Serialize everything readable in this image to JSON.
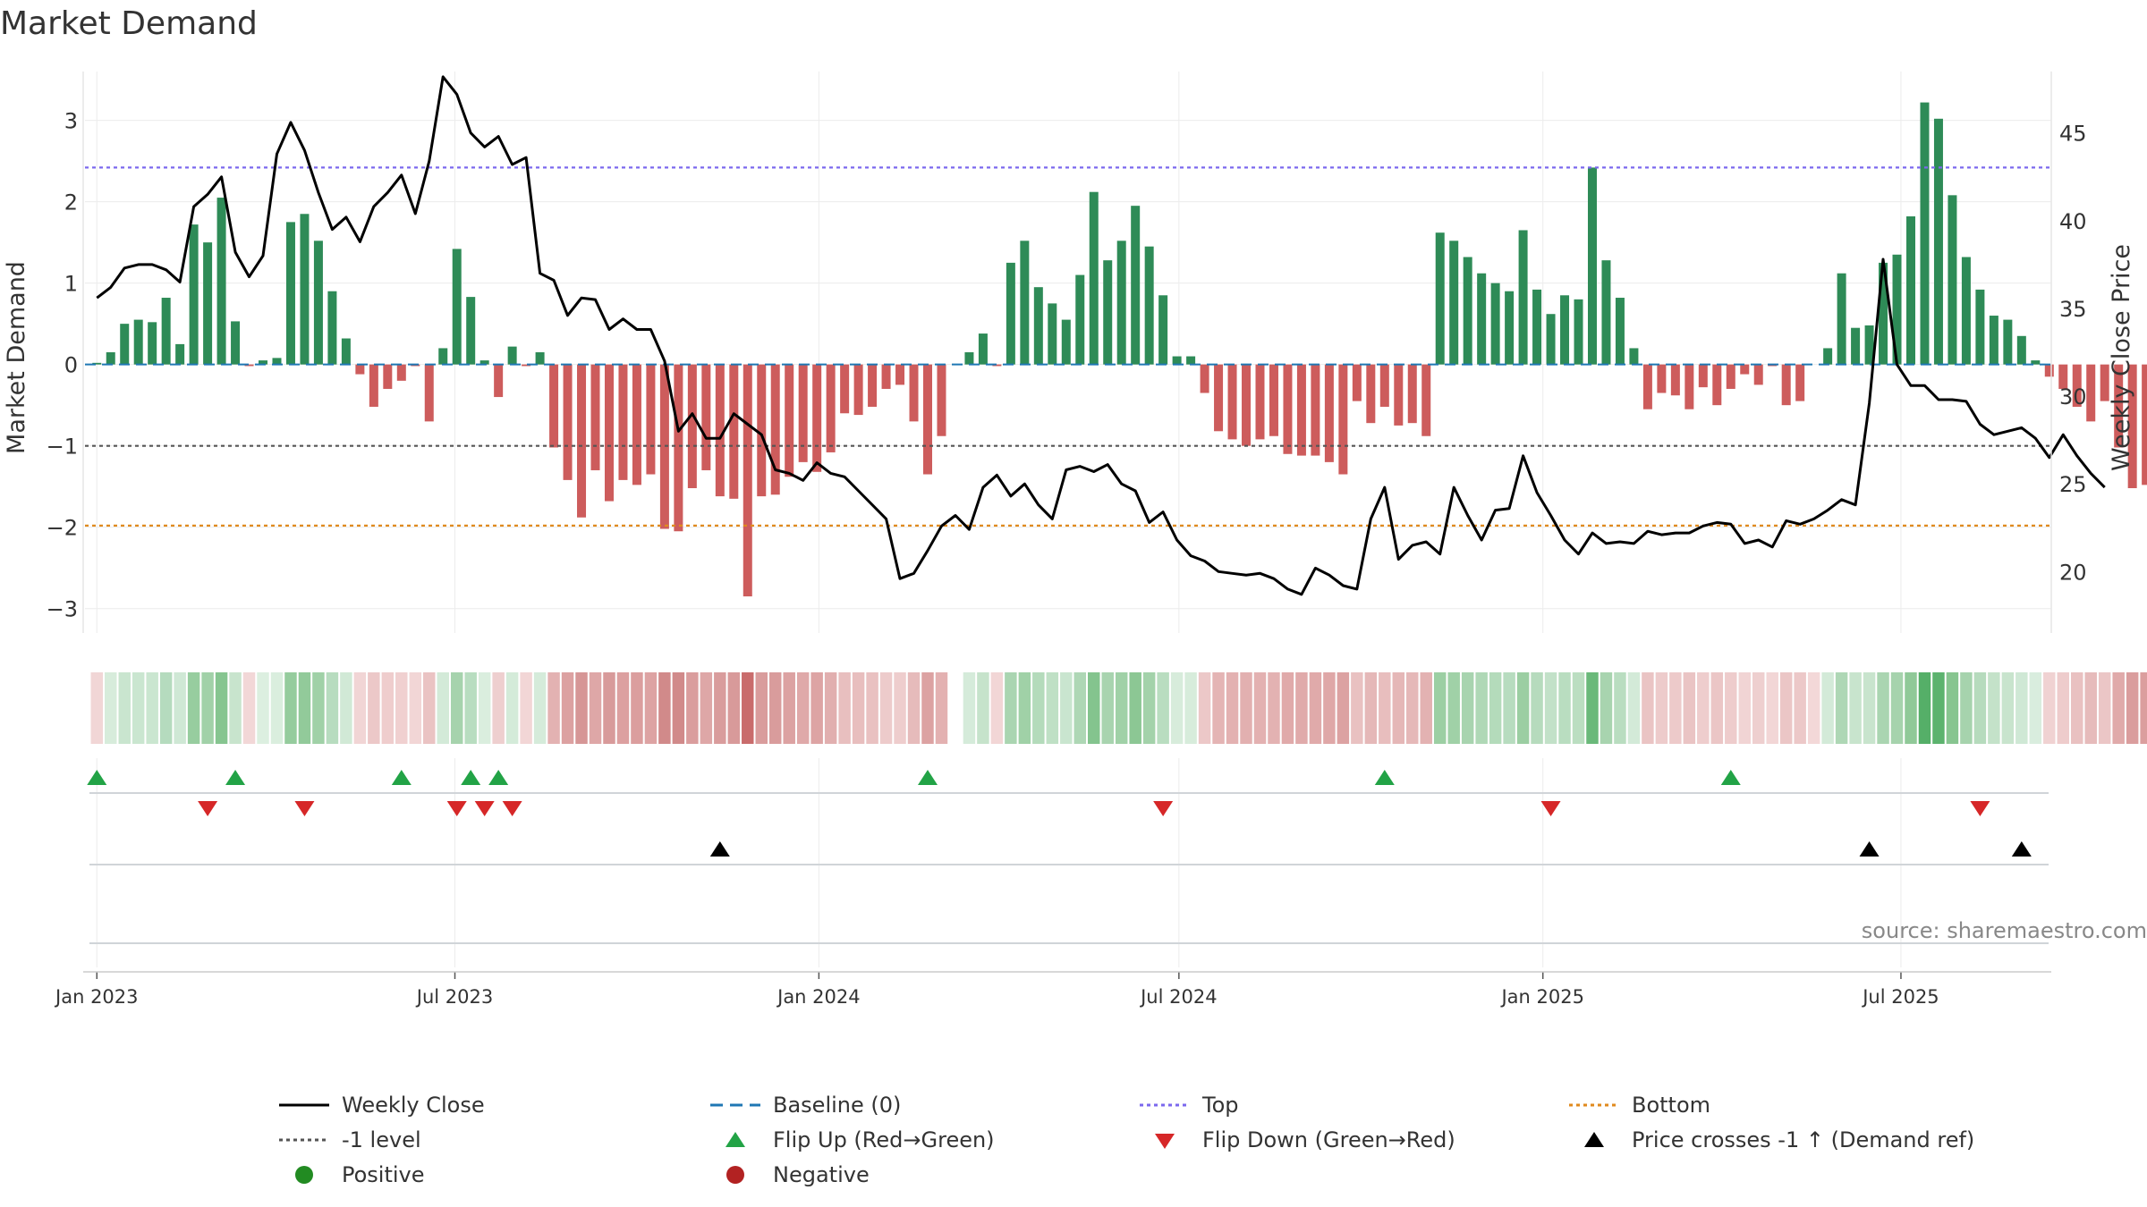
{
  "chart_data": {
    "type": "bar",
    "title": "Market Demand",
    "ylabel_left": "Market Demand",
    "ylabel_right": "Weekly Close Price",
    "x_start": "2022-12-26",
    "x_end": "2025-09-15",
    "left_ylim": [
      -3.3,
      3.6
    ],
    "left_yticks": [
      "3",
      "2",
      "1",
      "0",
      "−1",
      "−2",
      "−3"
    ],
    "right_ylim": [
      16.5,
      48.5
    ],
    "right_yticks": [
      "45",
      "40",
      "35",
      "30",
      "25",
      "20"
    ],
    "xticks": [
      {
        "date": "2023-01-01",
        "label": "Jan 2023"
      },
      {
        "date": "2023-07-01",
        "label": "Jul 2023"
      },
      {
        "date": "2024-01-01",
        "label": "Jan 2024"
      },
      {
        "date": "2024-07-01",
        "label": "Jul 2024"
      },
      {
        "date": "2025-01-01",
        "label": "Jan 2025"
      },
      {
        "date": "2025-07-01",
        "label": "Jul 2025"
      }
    ],
    "weeks_start": "2023-01-01",
    "demand": [
      0.02,
      0.15,
      0.5,
      0.55,
      0.52,
      0.82,
      0.25,
      1.72,
      1.5,
      2.05,
      0.53,
      -0.02,
      0.05,
      0.08,
      1.75,
      1.85,
      1.52,
      0.9,
      0.32,
      -0.12,
      -0.52,
      -0.3,
      -0.2,
      -0.02,
      -0.7,
      0.2,
      1.42,
      0.83,
      0.05,
      -0.4,
      0.22,
      -0.02,
      0.15,
      -1.02,
      -1.42,
      -1.88,
      -1.3,
      -1.68,
      -1.42,
      -1.48,
      -1.35,
      -2.02,
      -2.05,
      -1.52,
      -1.3,
      -1.62,
      -1.65,
      -2.85,
      -1.62,
      -1.6,
      -1.38,
      -1.2,
      -1.32,
      -1.08,
      -0.6,
      -0.62,
      -0.52,
      -0.3,
      -0.25,
      -0.7,
      -1.35,
      -0.88,
      0.0,
      0.15,
      0.38,
      -0.02,
      1.25,
      1.52,
      0.95,
      0.75,
      0.55,
      1.1,
      2.12,
      1.28,
      1.52,
      1.95,
      1.45,
      0.85,
      0.1,
      0.1,
      -0.35,
      -0.82,
      -0.92,
      -1.0,
      -0.92,
      -0.88,
      -1.1,
      -1.12,
      -1.12,
      -1.2,
      -1.35,
      -0.45,
      -0.72,
      -0.52,
      -0.75,
      -0.72,
      -0.88,
      1.62,
      1.52,
      1.32,
      1.12,
      1.0,
      0.9,
      1.65,
      0.92,
      0.62,
      0.85,
      0.8,
      2.42,
      1.28,
      0.82,
      0.2,
      -0.55,
      -0.35,
      -0.38,
      -0.55,
      -0.28,
      -0.5,
      -0.3,
      -0.12,
      -0.25,
      -0.02,
      -0.5,
      -0.45,
      0.0,
      0.2,
      1.12,
      0.45,
      0.48,
      1.25,
      1.35,
      1.82,
      3.22,
      3.02,
      2.08,
      1.32,
      0.92,
      0.6,
      0.55,
      0.35,
      0.05,
      -0.15,
      -0.3,
      -0.52,
      -0.7,
      -0.45,
      -1.02,
      -1.52,
      -1.48,
      -1.45
    ],
    "close": [
      35.6,
      36.2,
      37.3,
      37.5,
      37.5,
      37.2,
      36.5,
      40.8,
      41.5,
      42.5,
      38.2,
      36.8,
      38.0,
      43.8,
      45.6,
      44.0,
      41.6,
      39.5,
      40.2,
      38.8,
      40.8,
      41.6,
      42.6,
      40.4,
      43.4,
      48.2,
      47.2,
      45.0,
      44.2,
      44.8,
      43.2,
      43.6,
      37.0,
      36.6,
      34.6,
      35.6,
      35.5,
      33.8,
      34.4,
      33.8,
      33.8,
      32.0,
      28.0,
      29.0,
      27.6,
      27.6,
      29.0,
      28.4,
      27.8,
      25.8,
      25.6,
      25.2,
      26.2,
      25.6,
      25.4,
      24.6,
      23.8,
      23.0,
      19.6,
      19.9,
      21.2,
      22.6,
      23.2,
      22.4,
      24.8,
      25.5,
      24.3,
      25.0,
      23.8,
      23.0,
      25.8,
      26.0,
      25.7,
      26.1,
      25.0,
      24.6,
      22.8,
      23.4,
      21.8,
      20.9,
      20.6,
      20.0,
      19.9,
      19.8,
      19.9,
      19.6,
      19.0,
      18.7,
      20.2,
      19.8,
      19.2,
      19.0,
      23.0,
      24.8,
      20.7,
      21.5,
      21.7,
      21.0,
      24.8,
      23.2,
      21.8,
      23.5,
      23.6,
      26.6,
      24.5,
      23.2,
      21.8,
      21.0,
      22.2,
      21.6,
      21.7,
      21.6,
      22.3,
      22.1,
      22.2,
      22.2,
      22.6,
      22.8,
      22.7,
      21.6,
      21.8,
      21.4,
      22.9,
      22.7,
      23.0,
      23.5,
      24.1,
      23.8,
      29.6,
      37.8,
      31.8,
      30.6,
      30.6,
      29.8,
      29.8,
      29.7,
      28.4,
      27.8,
      28.0,
      28.2,
      27.6,
      26.5,
      27.8,
      26.6,
      25.6,
      24.8
    ],
    "heat_colors": [
      "#f1d6d6",
      "#d7ecdb",
      "#c9e5cf",
      "#cae6d0",
      "#cae6d0",
      "#b5dbbe",
      "#cfe8d5",
      "#97cd9f",
      "#a1d1a8",
      "#86c590",
      "#c8e4cd",
      "#f2d7d7",
      "#dcefe0",
      "#daeede",
      "#95cc9d",
      "#92ca9a",
      "#a0d1a7",
      "#b7dcbf",
      "#d1e9d6",
      "#f1d5d5",
      "#ecc8c8",
      "#efcdcd",
      "#f0d0d0",
      "#f2d6d6",
      "#eac3c3",
      "#d3ead8",
      "#a6d3ad",
      "#b8ddc0",
      "#daeede",
      "#eecfcf",
      "#d4ebd9",
      "#f2d6d6",
      "#d5ebda",
      "#e3b2b2",
      "#dca1a1",
      "#d69696",
      "#dea7a7",
      "#d89a9a",
      "#dca0a0",
      "#db9e9e",
      "#dda3a3",
      "#d18a8a",
      "#d18a8a",
      "#da9d9d",
      "#dea7a7",
      "#d99c9c",
      "#d89a9a",
      "#c96c6c",
      "#d99c9c",
      "#d99c9c",
      "#dca2a2",
      "#dfa9a9",
      "#dda4a4",
      "#e1afaf",
      "#e8bfbf",
      "#e8bebe",
      "#e9c1c1",
      "#edcbcb",
      "#eecdcd",
      "#e6bbbb",
      "#dca2a2",
      "#e3b1b1",
      "#ffffff",
      "#d5ebda",
      "#c6e3cb",
      "#f2d6d6",
      "#aad5b1",
      "#a0d1a7",
      "#b4dbbb",
      "#bfe0c5",
      "#c9e5cf",
      "#aed7b5",
      "#84c48e",
      "#a8d4af",
      "#a0d1a7",
      "#8cc794",
      "#a3d2aa",
      "#b9ddc0",
      "#d7ecdb",
      "#d7ecdb",
      "#ecc8c8",
      "#e4b4b4",
      "#e3b1b1",
      "#e2b0b0",
      "#e3b1b1",
      "#e3b2b2",
      "#e0aaaa",
      "#e0aaaa",
      "#e0aaaa",
      "#dfa7a7",
      "#dca2a2",
      "#e9c1c1",
      "#e5b8b8",
      "#e8bebe",
      "#e5b7b7",
      "#e5b8b8",
      "#e3b2b2",
      "#9ccfa3",
      "#a0d1a7",
      "#a8d4af",
      "#afd8b6",
      "#b4dbbb",
      "#b7dcbf",
      "#9bcea2",
      "#b6dbbd",
      "#c2e1c8",
      "#b9ddc0",
      "#bbdec1",
      "#6ab97a",
      "#a8d4af",
      "#b9ddc0",
      "#d3ead8",
      "#eac4c4",
      "#edcbcb",
      "#edcaca",
      "#eac4c4",
      "#eecdcd",
      "#ebc6c6",
      "#eecccc",
      "#f1d4d4",
      "#eecfcf",
      "#f2d6d6",
      "#ebc6c6",
      "#ecc8c8",
      "#f3d8d8",
      "#d3ead8",
      "#aed7b5",
      "#c8e4cd",
      "#c8e4cd",
      "#aad5b1",
      "#a6d3ad",
      "#90c998",
      "#55af68",
      "#5cb36e",
      "#87c590",
      "#a6d3ad",
      "#b6dbbd",
      "#c4e2c9",
      "#c8e4cd",
      "#cfe8d5",
      "#d9edde",
      "#f0d2d2",
      "#eecccc",
      "#e9c1c1",
      "#e6bbbb",
      "#ebc6c6",
      "#e0aaaa",
      "#da9d9d",
      "#db9e9e",
      "#dba0a0"
    ],
    "flip_up_dates": [
      "2023-01-01",
      "2023-03-12",
      "2023-06-04",
      "2023-07-09",
      "2023-07-23",
      "2024-02-25",
      "2024-10-13",
      "2025-04-06"
    ],
    "flip_down_dates": [
      "2023-02-26",
      "2023-04-16",
      "2023-07-02",
      "2023-07-16",
      "2023-07-30",
      "2024-06-23",
      "2025-01-05",
      "2025-08-10"
    ],
    "price_cross_dates": [
      "2023-11-12",
      "2025-06-15",
      "2025-08-31"
    ],
    "levels": {
      "top": 2.42,
      "minus_one": -1.0,
      "bottom": -1.98,
      "baseline": 0
    },
    "colors": {
      "positive_bar": "#2e8b57",
      "negative_bar": "#cd5c5c",
      "close_line": "#000000",
      "baseline": "#1f77b4",
      "top": "#7b68ee",
      "minus_one": "#555555",
      "bottom": "#e08a1e",
      "flip_up": "#22a346",
      "flip_down": "#d62728",
      "cross": "#000000",
      "positive_dot": "#228b22",
      "negative_dot": "#b22222"
    },
    "source": "source: sharemaestro.com",
    "legend": [
      {
        "key": "close",
        "label": "Weekly Close"
      },
      {
        "key": "baseline",
        "label": "Baseline (0)"
      },
      {
        "key": "top",
        "label": "Top"
      },
      {
        "key": "bottom",
        "label": "Bottom"
      },
      {
        "key": "minus_one",
        "label": "-1 level"
      },
      {
        "key": "flip_up",
        "label": "Flip Up (Red→Green)"
      },
      {
        "key": "flip_down",
        "label": "Flip Down (Green→Red)"
      },
      {
        "key": "cross",
        "label": "Price crosses -1 ↑ (Demand ref)"
      },
      {
        "key": "positive",
        "label": "Positive"
      },
      {
        "key": "negative",
        "label": "Negative"
      }
    ]
  }
}
